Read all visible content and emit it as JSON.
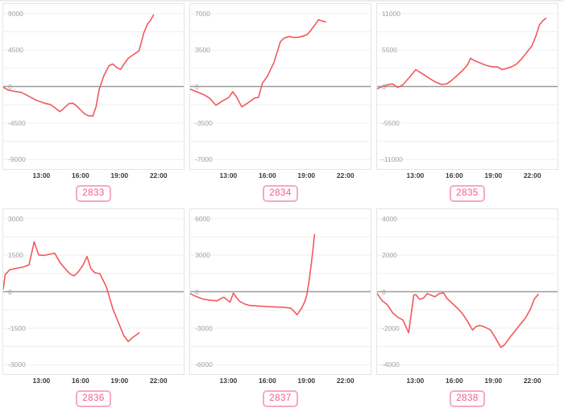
{
  "theme": {
    "background": "#ffffff",
    "line_color": "#f2595c",
    "grid_color": "#efefef",
    "zero_line_color": "#9b9b9b",
    "plot_border_color": "#e4e4e4",
    "y_label_color": "#a2a2a2",
    "x_label_color": "#3a3a3a",
    "badge_border_color": "#f7a9c4",
    "badge_text_color": "#ec5f8c"
  },
  "chart_data": [
    {
      "id": "2833",
      "type": "line",
      "badge_label": "2833",
      "x_domain": [
        10,
        24
      ],
      "x_ticks": [
        13,
        16,
        19,
        22
      ],
      "x_tick_labels": [
        "13:00",
        "16:00",
        "19:00",
        "22:00"
      ],
      "y_max": 9000,
      "y_tick_labels": [
        "9000",
        "4500",
        "0",
        "-4500",
        "-9000"
      ],
      "grid": "horizontal",
      "legend": "none",
      "series": [
        {
          "name": "value",
          "points": [
            [
              10.0,
              -100
            ],
            [
              10.4,
              -450
            ],
            [
              11.0,
              -625
            ],
            [
              11.4,
              -725
            ],
            [
              12.1,
              -1300
            ],
            [
              12.5,
              -1650
            ],
            [
              13.1,
              -2000
            ],
            [
              13.7,
              -2250
            ],
            [
              14.4,
              -3100
            ],
            [
              14.8,
              -2550
            ],
            [
              15.1,
              -2100
            ],
            [
              15.4,
              -2050
            ],
            [
              15.7,
              -2400
            ],
            [
              16.0,
              -2900
            ],
            [
              16.3,
              -3350
            ],
            [
              16.6,
              -3600
            ],
            [
              16.95,
              -3650
            ],
            [
              17.2,
              -2500
            ],
            [
              17.45,
              -300
            ],
            [
              17.8,
              1300
            ],
            [
              18.2,
              2570
            ],
            [
              18.5,
              2780
            ],
            [
              18.8,
              2350
            ],
            [
              19.1,
              2100
            ],
            [
              19.4,
              2840
            ],
            [
              19.7,
              3480
            ],
            [
              20.0,
              3820
            ],
            [
              20.35,
              4200
            ],
            [
              20.55,
              4450
            ],
            [
              20.9,
              6580
            ],
            [
              21.2,
              7730
            ],
            [
              21.4,
              8100
            ],
            [
              21.65,
              8800
            ]
          ]
        }
      ]
    },
    {
      "id": "2834",
      "type": "line",
      "badge_label": "2834",
      "x_domain": [
        10,
        24
      ],
      "x_ticks": [
        13,
        16,
        19,
        22
      ],
      "x_tick_labels": [
        "13:00",
        "16:00",
        "19:00",
        "22:00"
      ],
      "y_max": 7000,
      "y_tick_labels": [
        "7000",
        "3500",
        "0",
        "-3500",
        "-7000"
      ],
      "grid": "horizontal",
      "legend": "none",
      "series": [
        {
          "name": "value",
          "points": [
            [
              10.0,
              -250
            ],
            [
              10.5,
              -500
            ],
            [
              11.0,
              -750
            ],
            [
              11.5,
              -1100
            ],
            [
              12.0,
              -1800
            ],
            [
              12.5,
              -1400
            ],
            [
              13.0,
              -1050
            ],
            [
              13.3,
              -500
            ],
            [
              13.6,
              -1000
            ],
            [
              14.0,
              -1950
            ],
            [
              14.5,
              -1550
            ],
            [
              15.0,
              -1100
            ],
            [
              15.3,
              -1050
            ],
            [
              15.6,
              300
            ],
            [
              16.0,
              1000
            ],
            [
              16.5,
              2300
            ],
            [
              17.0,
              4300
            ],
            [
              17.3,
              4650
            ],
            [
              17.7,
              4800
            ],
            [
              18.0,
              4700
            ],
            [
              18.4,
              4720
            ],
            [
              18.8,
              4850
            ],
            [
              19.1,
              5000
            ],
            [
              19.4,
              5450
            ],
            [
              19.7,
              5950
            ],
            [
              19.95,
              6400
            ],
            [
              20.2,
              6300
            ],
            [
              20.5,
              6200
            ]
          ]
        }
      ]
    },
    {
      "id": "2835",
      "type": "line",
      "badge_label": "2835",
      "x_domain": [
        10,
        24
      ],
      "x_ticks": [
        13,
        16,
        19,
        22
      ],
      "x_tick_labels": [
        "13:00",
        "16:00",
        "19:00",
        "22:00"
      ],
      "y_max": 11000,
      "y_tick_labels": [
        "11000",
        "5500",
        "0",
        "-5500",
        "-11000"
      ],
      "grid": "horizontal",
      "legend": "none",
      "series": [
        {
          "name": "value",
          "points": [
            [
              10.0,
              -350
            ],
            [
              10.3,
              -100
            ],
            [
              10.8,
              250
            ],
            [
              11.2,
              400
            ],
            [
              11.6,
              -150
            ],
            [
              12.0,
              250
            ],
            [
              12.5,
              1350
            ],
            [
              13.0,
              2550
            ],
            [
              13.5,
              1950
            ],
            [
              14.0,
              1300
            ],
            [
              14.5,
              700
            ],
            [
              15.0,
              300
            ],
            [
              15.4,
              400
            ],
            [
              15.8,
              950
            ],
            [
              16.2,
              1650
            ],
            [
              16.6,
              2350
            ],
            [
              17.0,
              3200
            ],
            [
              17.25,
              4250
            ],
            [
              17.6,
              3850
            ],
            [
              18.0,
              3550
            ],
            [
              18.5,
              3150
            ],
            [
              19.0,
              2950
            ],
            [
              19.35,
              2950
            ],
            [
              19.7,
              2550
            ],
            [
              20.0,
              2700
            ],
            [
              20.4,
              2950
            ],
            [
              20.8,
              3350
            ],
            [
              21.2,
              4150
            ],
            [
              21.6,
              5100
            ],
            [
              22.0,
              6100
            ],
            [
              22.3,
              7500
            ],
            [
              22.6,
              9300
            ],
            [
              22.85,
              9900
            ],
            [
              23.1,
              10300
            ]
          ]
        }
      ]
    },
    {
      "id": "2836",
      "type": "line",
      "badge_label": "2836",
      "x_domain": [
        10,
        24
      ],
      "x_ticks": [
        13,
        16,
        19,
        22
      ],
      "x_tick_labels": [
        "13:00",
        "16:00",
        "19:00",
        "22:00"
      ],
      "y_max": 3000,
      "y_tick_labels": [
        "3000",
        "1500",
        "0",
        "-1500",
        "-3000"
      ],
      "grid": "horizontal",
      "legend": "none",
      "series": [
        {
          "name": "value",
          "points": [
            [
              10.0,
              100
            ],
            [
              10.15,
              700
            ],
            [
              10.5,
              900
            ],
            [
              11.0,
              960
            ],
            [
              11.5,
              1010
            ],
            [
              12.0,
              1100
            ],
            [
              12.4,
              2050
            ],
            [
              12.75,
              1510
            ],
            [
              13.2,
              1490
            ],
            [
              13.6,
              1540
            ],
            [
              14.0,
              1580
            ],
            [
              14.4,
              1200
            ],
            [
              14.8,
              950
            ],
            [
              15.2,
              720
            ],
            [
              15.5,
              650
            ],
            [
              15.8,
              800
            ],
            [
              16.2,
              1100
            ],
            [
              16.5,
              1450
            ],
            [
              16.8,
              950
            ],
            [
              17.1,
              780
            ],
            [
              17.5,
              740
            ],
            [
              18.0,
              200
            ],
            [
              18.5,
              -700
            ],
            [
              19.0,
              -1350
            ],
            [
              19.35,
              -1800
            ],
            [
              19.7,
              -2050
            ],
            [
              20.0,
              -1900
            ],
            [
              20.55,
              -1690
            ]
          ]
        }
      ]
    },
    {
      "id": "2837",
      "type": "line",
      "badge_label": "2837",
      "x_domain": [
        10,
        24
      ],
      "x_ticks": [
        13,
        16,
        19,
        22
      ],
      "x_tick_labels": [
        "13:00",
        "16:00",
        "19:00",
        "22:00"
      ],
      "y_max": 6000,
      "y_tick_labels": [
        "6000",
        "3000",
        "0",
        "-3000",
        "-6000"
      ],
      "grid": "horizontal",
      "legend": "none",
      "series": [
        {
          "name": "value",
          "points": [
            [
              10.0,
              -150
            ],
            [
              10.5,
              -420
            ],
            [
              11.0,
              -600
            ],
            [
              11.5,
              -700
            ],
            [
              12.1,
              -750
            ],
            [
              12.4,
              -550
            ],
            [
              12.6,
              -450
            ],
            [
              12.9,
              -700
            ],
            [
              13.1,
              -850
            ],
            [
              13.35,
              -120
            ],
            [
              13.6,
              -500
            ],
            [
              13.85,
              -800
            ],
            [
              14.2,
              -1000
            ],
            [
              14.6,
              -1130
            ],
            [
              15.2,
              -1170
            ],
            [
              16.2,
              -1240
            ],
            [
              17.3,
              -1280
            ],
            [
              17.8,
              -1350
            ],
            [
              18.0,
              -1550
            ],
            [
              18.3,
              -1900
            ],
            [
              18.65,
              -1340
            ],
            [
              18.9,
              -800
            ],
            [
              19.05,
              -250
            ],
            [
              19.2,
              700
            ],
            [
              19.35,
              1900
            ],
            [
              19.5,
              3200
            ],
            [
              19.65,
              4700
            ]
          ]
        }
      ]
    },
    {
      "id": "2838",
      "type": "line",
      "badge_label": "2838",
      "x_domain": [
        10,
        24
      ],
      "x_ticks": [
        13,
        16,
        19,
        22
      ],
      "x_tick_labels": [
        "13:00",
        "16:00",
        "19:00",
        "22:00"
      ],
      "y_max": 4000,
      "y_tick_labels": [
        "4000",
        "2000",
        "0",
        "-2000",
        "-4000"
      ],
      "grid": "horizontal",
      "legend": "none",
      "series": [
        {
          "name": "value",
          "points": [
            [
              10.0,
              -100
            ],
            [
              10.4,
              -500
            ],
            [
              10.8,
              -720
            ],
            [
              11.2,
              -1150
            ],
            [
              11.6,
              -1400
            ],
            [
              12.0,
              -1550
            ],
            [
              12.45,
              -2250
            ],
            [
              12.85,
              -180
            ],
            [
              13.0,
              -160
            ],
            [
              13.3,
              -420
            ],
            [
              13.6,
              -350
            ],
            [
              13.9,
              -100
            ],
            [
              14.2,
              -200
            ],
            [
              14.5,
              -280
            ],
            [
              14.8,
              -110
            ],
            [
              15.15,
              -60
            ],
            [
              15.4,
              -350
            ],
            [
              15.7,
              -550
            ],
            [
              16.0,
              -750
            ],
            [
              16.3,
              -950
            ],
            [
              16.6,
              -1180
            ],
            [
              17.0,
              -1600
            ],
            [
              17.4,
              -2100
            ],
            [
              17.7,
              -1900
            ],
            [
              18.0,
              -1850
            ],
            [
              18.4,
              -1950
            ],
            [
              18.8,
              -2100
            ],
            [
              19.2,
              -2550
            ],
            [
              19.6,
              -3050
            ],
            [
              19.9,
              -2900
            ],
            [
              20.3,
              -2500
            ],
            [
              20.7,
              -2150
            ],
            [
              21.1,
              -1800
            ],
            [
              21.5,
              -1450
            ],
            [
              21.9,
              -950
            ],
            [
              22.2,
              -400
            ],
            [
              22.5,
              -150
            ]
          ]
        }
      ]
    }
  ]
}
